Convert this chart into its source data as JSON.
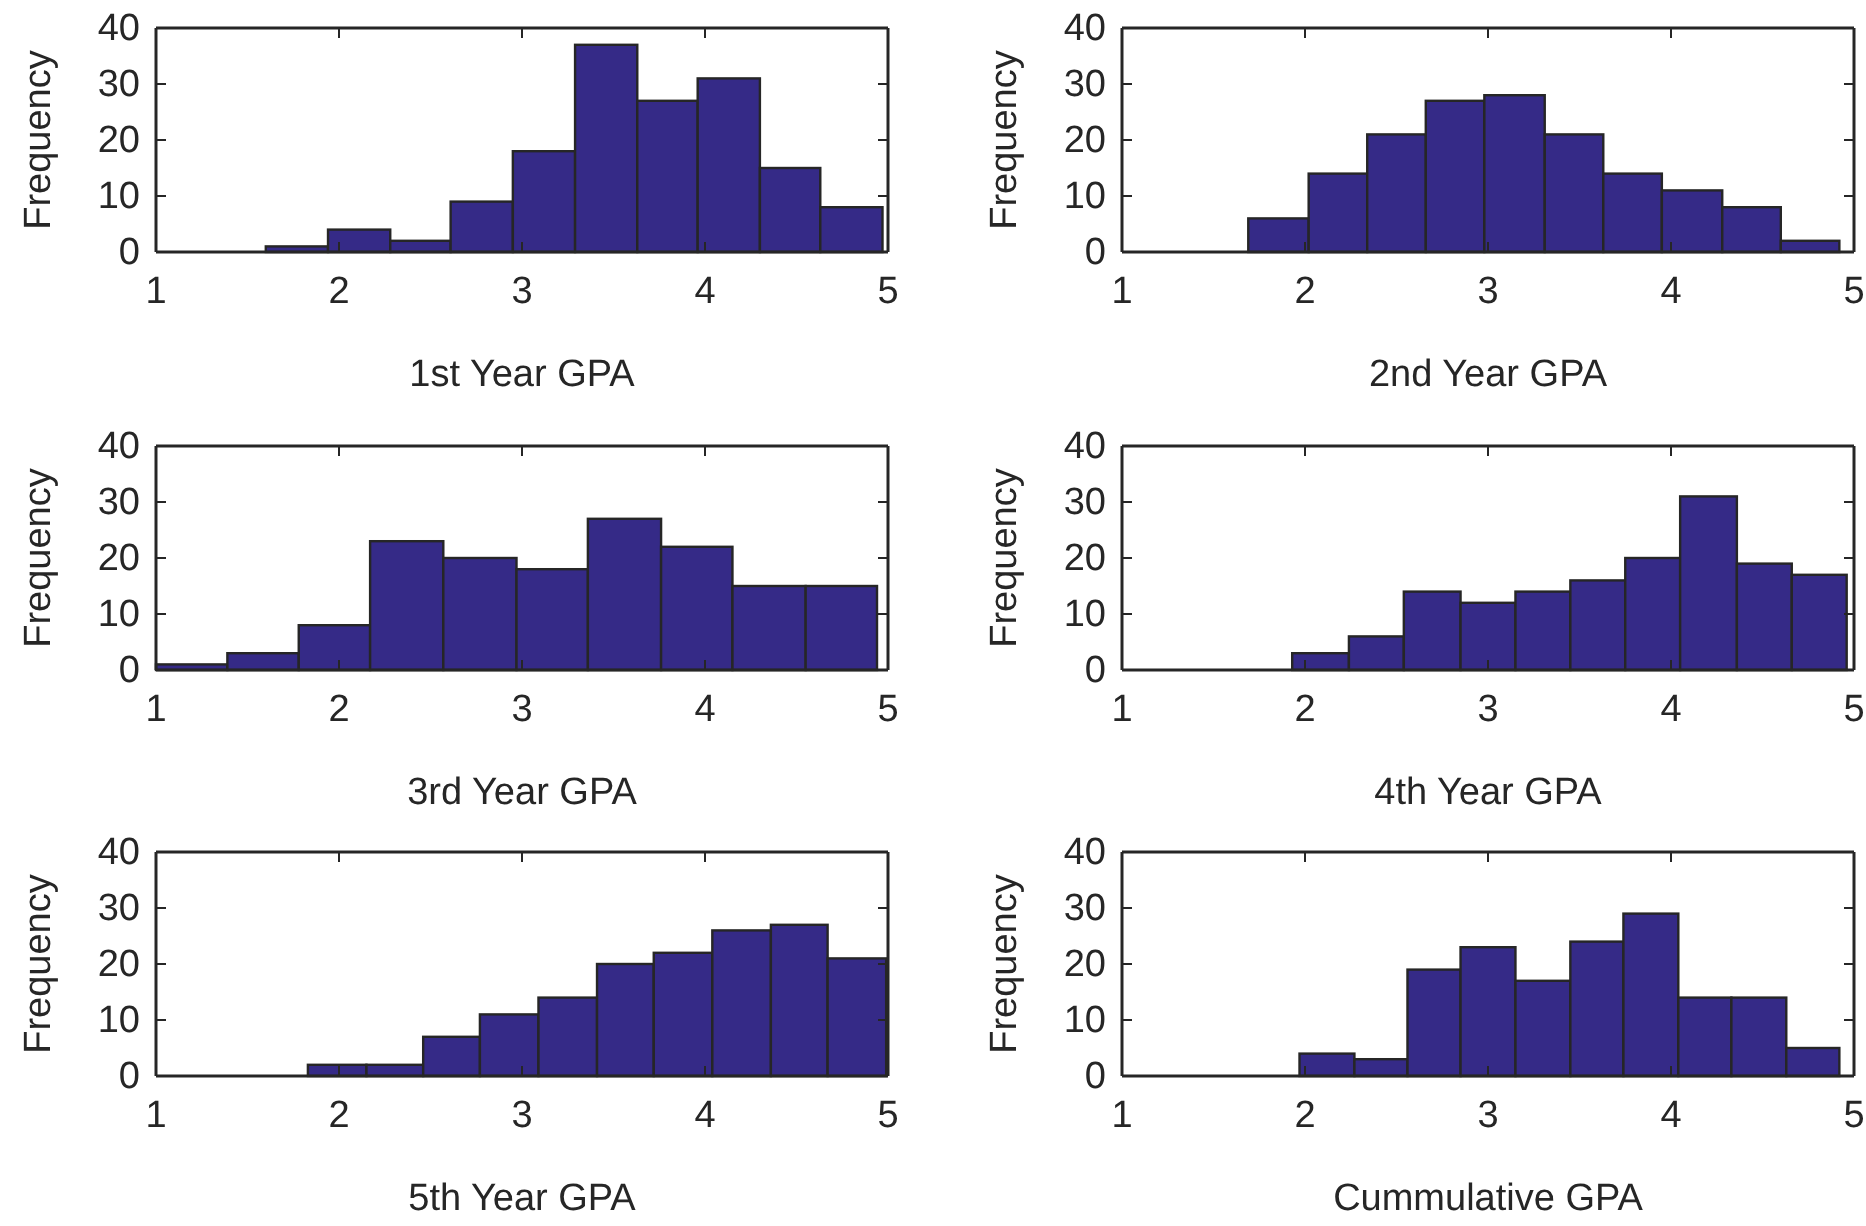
{
  "chart_data": [
    {
      "type": "histogram",
      "xlabel": "1st Year GPA",
      "ylabel": "Frequency",
      "bins": [
        1.6,
        1.94,
        2.28,
        2.61,
        2.95,
        3.29,
        3.63,
        3.96,
        4.3,
        4.63,
        4.97
      ],
      "values": [
        1,
        4,
        2,
        9,
        18,
        37,
        27,
        31,
        15,
        8
      ],
      "color": "#352a87",
      "xlim": [
        1,
        5
      ],
      "xticks": [
        1,
        2,
        3,
        4,
        5
      ],
      "ylim": [
        0,
        40
      ],
      "yticks": [
        0,
        10,
        20,
        30,
        40
      ]
    },
    {
      "type": "histogram",
      "xlabel": "2nd Year GPA",
      "ylabel": "Frequency",
      "bins": [
        1.69,
        2.02,
        2.34,
        2.66,
        2.98,
        3.31,
        3.63,
        3.95,
        4.28,
        4.6,
        4.92
      ],
      "values": [
        6,
        14,
        21,
        27,
        28,
        21,
        14,
        11,
        8,
        2
      ],
      "color": "#352a87",
      "xlim": [
        1,
        5
      ],
      "xticks": [
        1,
        2,
        3,
        4,
        5
      ],
      "ylim": [
        0,
        40
      ],
      "yticks": [
        0,
        10,
        20,
        30,
        40
      ]
    },
    {
      "type": "histogram",
      "xlabel": "3rd Year GPA",
      "ylabel": "Frequency",
      "bins": [
        1,
        1.39,
        1.78,
        2.17,
        2.57,
        2.97,
        3.36,
        3.76,
        4.15,
        4.55,
        4.94
      ],
      "values": [
        1,
        3,
        8,
        23,
        20,
        18,
        27,
        22,
        15,
        15
      ],
      "color": "#352a87",
      "xlim": [
        1,
        5
      ],
      "xticks": [
        1,
        2,
        3,
        4,
        5
      ],
      "ylim": [
        0,
        40
      ],
      "yticks": [
        0,
        10,
        20,
        30,
        40
      ]
    },
    {
      "type": "histogram",
      "xlabel": "4th Year GPA",
      "ylabel": "Frequency",
      "bins": [
        1.93,
        2.24,
        2.54,
        2.85,
        3.15,
        3.45,
        3.75,
        4.05,
        4.36,
        4.66,
        4.96
      ],
      "values": [
        3,
        6,
        14,
        12,
        14,
        16,
        20,
        31,
        19,
        17
      ],
      "color": "#352a87",
      "xlim": [
        1,
        5
      ],
      "xticks": [
        1,
        2,
        3,
        4,
        5
      ],
      "ylim": [
        0,
        40
      ],
      "yticks": [
        0,
        10,
        20,
        30,
        40
      ]
    },
    {
      "type": "histogram",
      "xlabel": "5th Year GPA",
      "ylabel": "Frequency",
      "bins": [
        1.83,
        2.15,
        2.46,
        2.77,
        3.09,
        3.41,
        3.72,
        4.04,
        4.36,
        4.67,
        4.99
      ],
      "values": [
        2,
        2,
        7,
        11,
        14,
        20,
        22,
        26,
        27,
        21
      ],
      "color": "#352a87",
      "xlim": [
        1,
        5
      ],
      "xticks": [
        1,
        2,
        3,
        4,
        5
      ],
      "ylim": [
        0,
        40
      ],
      "yticks": [
        0,
        10,
        20,
        30,
        40
      ]
    },
    {
      "type": "histogram",
      "xlabel": "Cummulative GPA",
      "ylabel": "Frequency",
      "bins": [
        1.97,
        2.27,
        2.56,
        2.85,
        3.15,
        3.45,
        3.74,
        4.04,
        4.33,
        4.63,
        4.92
      ],
      "values": [
        4,
        3,
        19,
        23,
        17,
        24,
        29,
        14,
        14,
        5
      ],
      "color": "#352a87",
      "xlim": [
        1,
        5
      ],
      "xticks": [
        1,
        2,
        3,
        4,
        5
      ],
      "ylim": [
        0,
        40
      ],
      "yticks": [
        0,
        10,
        20,
        30,
        40
      ]
    }
  ]
}
